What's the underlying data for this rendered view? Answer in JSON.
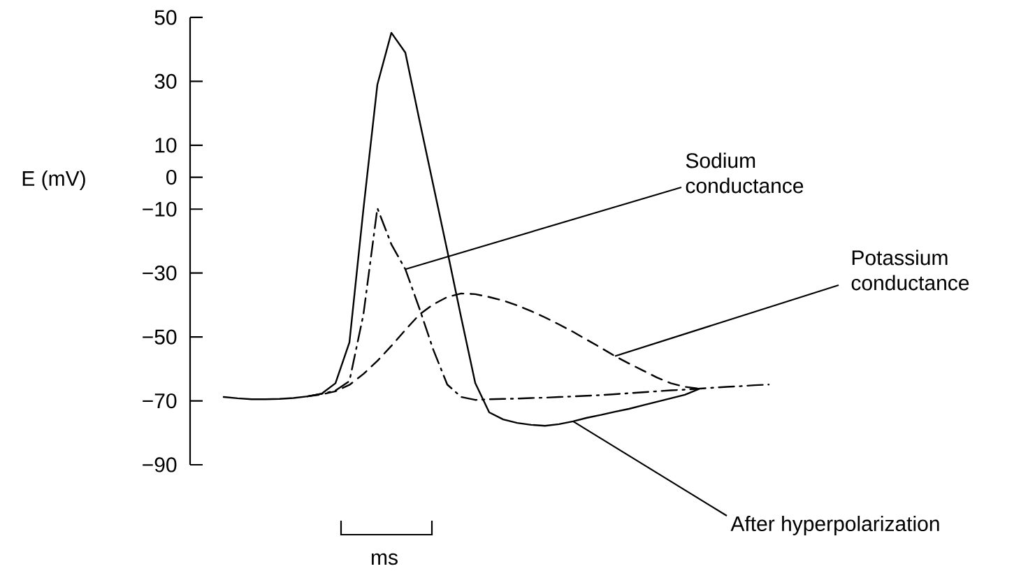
{
  "chart_data": {
    "type": "line",
    "ylabel": "E (mV)",
    "categories": [
      null,
      null,
      null,
      null,
      null,
      null,
      null,
      null,
      null,
      null,
      null,
      null,
      null,
      null,
      null,
      null,
      null,
      null,
      null,
      null,
      null,
      null,
      null,
      null,
      null,
      null,
      null,
      null,
      null,
      null,
      null,
      null,
      null,
      null,
      null,
      null,
      null,
      null,
      null,
      null
    ],
    "series": [
      {
        "color": "#000000",
        "line_style": "solid",
        "values": [
          -68.8,
          -69.2,
          -69.5,
          -69.5,
          -69.4,
          -69.1,
          -68.6,
          -67.8,
          -64.5,
          -51.7,
          -10,
          29,
          45.2,
          39,
          18,
          -2.5,
          -23,
          -44,
          -64.4,
          -73.6,
          -75.8,
          -76.9,
          -77.5,
          -77.8,
          -77.3,
          -76.4,
          -75.3,
          -74.4,
          -73.4,
          -72.5,
          -71.4,
          -70.3,
          -69.2,
          -68.1,
          -66.3,
          null,
          null,
          null,
          null,
          null
        ]
      },
      {
        "name": "Sodium conductance",
        "color": "#000000",
        "line_style": "dashdot",
        "values": [
          null,
          null,
          null,
          null,
          null,
          null,
          -68.6,
          -67.8,
          -66.8,
          -63.8,
          -43,
          -9.7,
          -21,
          -28.8,
          -41,
          -54,
          -64.9,
          -68.8,
          -69.7,
          -69.5,
          -69.4,
          -69.3,
          -69.1,
          -69,
          -68.8,
          -68.6,
          -68.4,
          -68.2,
          -67.9,
          -67.6,
          -67.3,
          -67,
          -66.7,
          -66.5,
          -66.2,
          -65.9,
          -65.6,
          -65.4,
          -65.1,
          -64.9
        ]
      },
      {
        "name": "Potassium conductance",
        "color": "#000000",
        "line_style": "dashed",
        "values": [
          null,
          null,
          null,
          null,
          null,
          null,
          -68.6,
          -68,
          -67,
          -65,
          -61.6,
          -57.5,
          -52.8,
          -47.8,
          -43,
          -39.8,
          -37.5,
          -36.4,
          -36.6,
          -37.5,
          -38.6,
          -40.1,
          -41.9,
          -43.9,
          -46.1,
          -48.4,
          -50.9,
          -53.4,
          -56,
          -58.3,
          -60.5,
          -62.7,
          -64.5,
          -65.6,
          -66.2,
          null,
          null,
          null,
          null,
          null
        ]
      }
    ],
    "ylim": [
      -90,
      50
    ],
    "yticks": [
      50,
      30,
      10,
      0,
      {
        "value": -10,
        "label": "−10"
      },
      {
        "value": -30,
        "label": "−30"
      },
      {
        "value": -50,
        "label": "−50"
      },
      {
        "value": -70,
        "label": "−70"
      },
      {
        "value": -90,
        "label": "−90"
      }
    ],
    "tick_labels": "y",
    "annotations": [
      "After hyperpolarization",
      "ms"
    ]
  }
}
